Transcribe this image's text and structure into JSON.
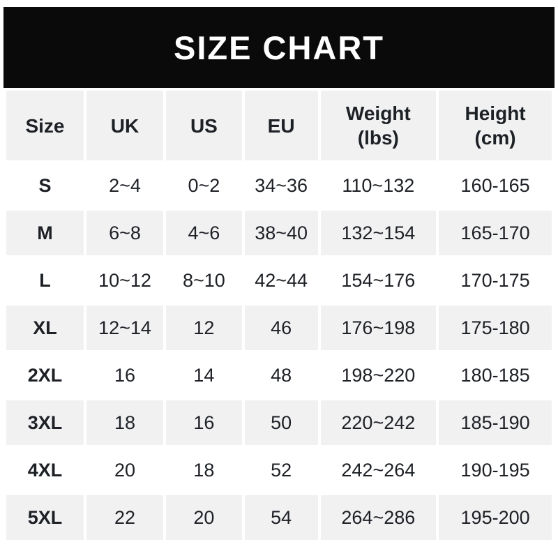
{
  "banner": {
    "title": "SIZE CHART"
  },
  "colors": {
    "banner_bg": "#0a0a0a",
    "banner_text": "#ffffff",
    "row_alt_bg": "#f1f1f2",
    "row_bg": "#ffffff",
    "text": "#1d2025"
  },
  "chart_data": {
    "type": "table",
    "title": "SIZE CHART",
    "columns": [
      {
        "label": "Size",
        "sub": ""
      },
      {
        "label": "UK",
        "sub": ""
      },
      {
        "label": "US",
        "sub": ""
      },
      {
        "label": "EU",
        "sub": ""
      },
      {
        "label": "Weight",
        "sub": "(lbs)"
      },
      {
        "label": "Height",
        "sub": "(cm)"
      }
    ],
    "rows": [
      {
        "size": "S",
        "uk": "2~4",
        "us": "0~2",
        "eu": "34~36",
        "weight": "110~132",
        "height": "160-165"
      },
      {
        "size": "M",
        "uk": "6~8",
        "us": "4~6",
        "eu": "38~40",
        "weight": "132~154",
        "height": "165-170"
      },
      {
        "size": "L",
        "uk": "10~12",
        "us": "8~10",
        "eu": "42~44",
        "weight": "154~176",
        "height": "170-175"
      },
      {
        "size": "XL",
        "uk": "12~14",
        "us": "12",
        "eu": "46",
        "weight": "176~198",
        "height": "175-180"
      },
      {
        "size": "2XL",
        "uk": "16",
        "us": "14",
        "eu": "48",
        "weight": "198~220",
        "height": "180-185"
      },
      {
        "size": "3XL",
        "uk": "18",
        "us": "16",
        "eu": "50",
        "weight": "220~242",
        "height": "185-190"
      },
      {
        "size": "4XL",
        "uk": "20",
        "us": "18",
        "eu": "52",
        "weight": "242~264",
        "height": "190-195"
      },
      {
        "size": "5XL",
        "uk": "22",
        "us": "20",
        "eu": "54",
        "weight": "264~286",
        "height": "195-200"
      }
    ]
  }
}
